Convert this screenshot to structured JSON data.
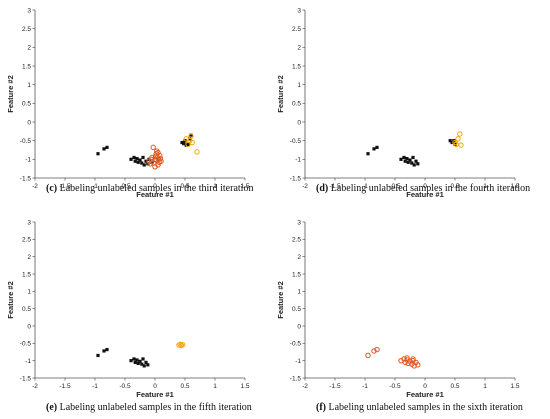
{
  "colors": {
    "black_square": "#111111",
    "orange_circle": "#e0571b",
    "yellow_circle": "#f2a900"
  },
  "chart_data": [
    {
      "type": "scatter",
      "caption_label": "(c)",
      "caption": "Labeling unlabeled samples in the third iteration",
      "xlabel": "Feature #1",
      "ylabel": "Feature #2",
      "xlim": [
        -2,
        1.5
      ],
      "ylim": [
        -1.5,
        3
      ],
      "xticks": [
        "-2",
        "-1.5",
        "-1",
        "-0.5",
        "0",
        "0.5",
        "1",
        "1.5"
      ],
      "yticks": [
        "-1.5",
        "-1",
        "-0.5",
        "0",
        "0.5",
        "1",
        "1.5",
        "2",
        "2.5",
        "3"
      ],
      "series": [
        {
          "marker": "square",
          "color": "#111111",
          "x": [
            -0.95,
            -0.85,
            -0.8,
            -0.4,
            -0.35,
            -0.33,
            -0.3,
            -0.28,
            -0.25,
            -0.22,
            -0.2,
            -0.18,
            -0.15,
            -0.12,
            -0.1,
            -0.05,
            0.45,
            0.5,
            0.55,
            0.58,
            0.6,
            0.52,
            0.48
          ],
          "y": [
            -0.85,
            -0.72,
            -0.68,
            -1.0,
            -0.95,
            -1.05,
            -0.98,
            -1.08,
            -1.02,
            -1.1,
            -0.95,
            -1.15,
            -1.05,
            -1.12,
            -1.0,
            -1.08,
            -0.55,
            -0.5,
            -0.6,
            -0.45,
            -0.35,
            -0.62,
            -0.58
          ]
        },
        {
          "marker": "circle",
          "color": "#e0571b",
          "x": [
            -0.1,
            -0.05,
            -0.02,
            0.0,
            0.02,
            0.05,
            0.08,
            0.1,
            -0.08,
            0.03,
            0.06,
            0.0,
            0.04,
            -0.03,
            0.07,
            0.01,
            0.09,
            -0.06,
            0.05,
            0.02
          ],
          "y": [
            -1.05,
            -0.95,
            -1.1,
            -1.0,
            -0.85,
            -1.15,
            -0.9,
            -1.05,
            -1.12,
            -0.78,
            -1.0,
            -1.2,
            -0.95,
            -0.68,
            -1.08,
            -0.92,
            -0.98,
            -1.0,
            -0.82,
            -1.02
          ]
        },
        {
          "marker": "circle",
          "color": "#f2a900",
          "x": [
            0.52,
            0.55,
            0.6,
            0.62,
            0.58,
            0.7
          ],
          "y": [
            -0.45,
            -0.6,
            -0.38,
            -0.55,
            -0.5,
            -0.8
          ]
        }
      ]
    },
    {
      "type": "scatter",
      "caption_label": "(d)",
      "caption": "Labeling unlabeled samples in the fourth iteration",
      "xlabel": "Feature #1",
      "ylabel": "Feature #2",
      "xlim": [
        -2,
        1.5
      ],
      "ylim": [
        -1.5,
        3
      ],
      "xticks": [
        "-2",
        "-1.5",
        "-1",
        "-0.5",
        "0",
        "0.5",
        "1",
        "1.5"
      ],
      "yticks": [
        "-1.5",
        "-1",
        "-0.5",
        "0",
        "0.5",
        "1",
        "1.5",
        "2",
        "2.5",
        "3"
      ],
      "series": [
        {
          "marker": "square",
          "color": "#111111",
          "x": [
            -0.95,
            -0.85,
            -0.8,
            -0.4,
            -0.35,
            -0.33,
            -0.3,
            -0.28,
            -0.25,
            -0.22,
            -0.2,
            -0.18,
            -0.15,
            -0.12,
            0.42,
            0.45,
            0.48,
            0.5
          ],
          "y": [
            -0.85,
            -0.72,
            -0.68,
            -1.0,
            -0.95,
            -1.05,
            -0.98,
            -1.08,
            -1.02,
            -1.1,
            -0.95,
            -1.15,
            -1.05,
            -1.12,
            -0.5,
            -0.55,
            -0.5,
            -0.6
          ]
        },
        {
          "marker": "circle",
          "color": "#f2a900",
          "x": [
            0.5,
            0.55,
            0.58,
            0.6,
            0.52
          ],
          "y": [
            -0.55,
            -0.45,
            -0.32,
            -0.62,
            -0.6
          ]
        }
      ]
    },
    {
      "type": "scatter",
      "caption_label": "(e)",
      "caption": "Labeling unlabeled samples in the fifth iteration",
      "xlabel": "Feature #1",
      "ylabel": "Feature #2",
      "xlim": [
        -2,
        1.5
      ],
      "ylim": [
        -1.5,
        3
      ],
      "xticks": [
        "-2",
        "-1.5",
        "-1",
        "-0.5",
        "0",
        "0.5",
        "1",
        "1.5"
      ],
      "yticks": [
        "-1.5",
        "-1",
        "-0.5",
        "0",
        "0.5",
        "1",
        "1.5",
        "2",
        "2.5",
        "3"
      ],
      "series": [
        {
          "marker": "square",
          "color": "#111111",
          "x": [
            -0.95,
            -0.85,
            -0.8,
            -0.4,
            -0.35,
            -0.33,
            -0.3,
            -0.28,
            -0.25,
            -0.22,
            -0.2,
            -0.18,
            -0.15,
            -0.12
          ],
          "y": [
            -0.85,
            -0.72,
            -0.68,
            -1.0,
            -0.95,
            -1.05,
            -0.98,
            -1.08,
            -1.02,
            -1.1,
            -0.95,
            -1.15,
            -1.05,
            -1.12
          ]
        },
        {
          "marker": "circle",
          "color": "#f2a900",
          "x": [
            0.4,
            0.42,
            0.44,
            0.46
          ],
          "y": [
            -0.55,
            -0.53,
            -0.56,
            -0.54
          ]
        }
      ]
    },
    {
      "type": "scatter",
      "caption_label": "(f)",
      "caption": "Labeling unlabeled samples in the sixth iteration",
      "xlabel": "Feature #1",
      "ylabel": "Feature #2",
      "xlim": [
        -2,
        1.5
      ],
      "ylim": [
        -1.5,
        3
      ],
      "xticks": [
        "-2",
        "-1.5",
        "-1",
        "-0.5",
        "0",
        "0.5",
        "1",
        "1.5"
      ],
      "yticks": [
        "-1.5",
        "-1",
        "-0.5",
        "0",
        "0.5",
        "1",
        "1.5",
        "2",
        "2.5",
        "3"
      ],
      "series": [
        {
          "marker": "circle",
          "color": "#e0571b",
          "x": [
            -0.95,
            -0.85,
            -0.8,
            -0.4,
            -0.35,
            -0.33,
            -0.3,
            -0.28,
            -0.25,
            -0.22,
            -0.2,
            -0.18,
            -0.15,
            -0.12,
            -0.3,
            -0.2
          ],
          "y": [
            -0.85,
            -0.72,
            -0.68,
            -1.0,
            -0.95,
            -1.05,
            -0.98,
            -1.08,
            -1.02,
            -1.1,
            -0.95,
            -1.15,
            -1.05,
            -1.12,
            -0.92,
            -1.0
          ]
        }
      ]
    }
  ]
}
